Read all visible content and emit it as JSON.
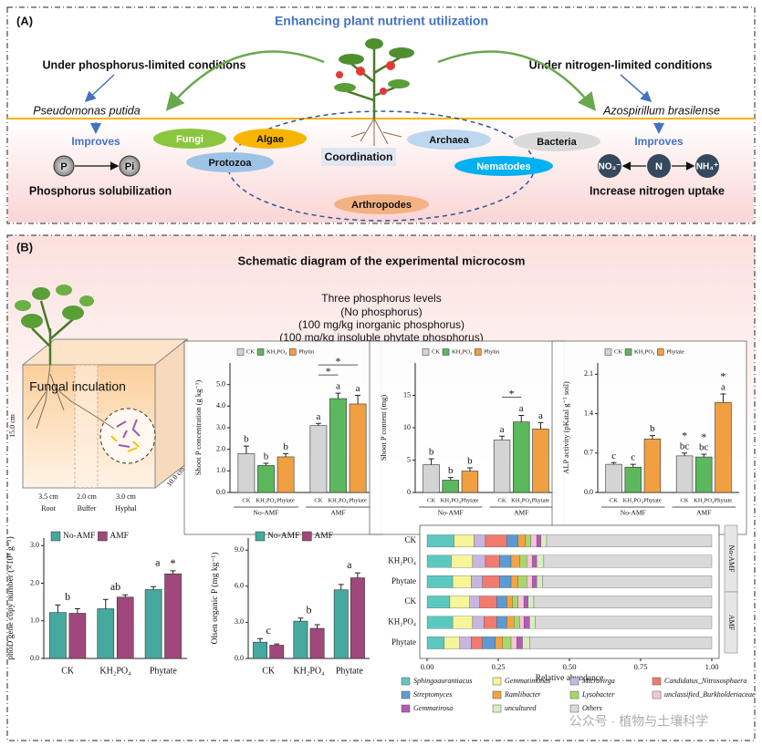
{
  "panel_a": {
    "label": "(A)",
    "title": "Enhancing plant nutrient utilization",
    "left": {
      "condition": "Under phosphorus-limited conditions",
      "organism": "Pseudomonas putida",
      "improves": "Improves",
      "from": "P",
      "to": "Pi",
      "outcome": "Phosphorus solubilization"
    },
    "right": {
      "condition": "Under nitrogen-limited conditions",
      "organism": "Azospirillum brasilense",
      "improves": "Improves",
      "nodes": [
        "NO₃⁻",
        "N",
        "NH₄⁺"
      ],
      "outcome": "Increase nitrogen uptake"
    },
    "center": "Coordination",
    "groups": [
      "Fungi",
      "Algae",
      "Protozoa",
      "Archaea",
      "Bacteria",
      "Nematodes",
      "Arthropodes"
    ]
  },
  "panel_b": {
    "label": "(B)",
    "title": "Schematic diagram of the experimental microcosm",
    "levels": [
      "Three phosphorus levels",
      "(No phosphorus)",
      "(100 mg/kg inorganic phosphorus)",
      "(100 mg/kg insoluble phytate phosphorus)"
    ],
    "microcosm": {
      "inoculation": "Fungal inculation",
      "height": "15.0 cm",
      "depth": "10.0 cm",
      "widths": [
        "3.5 cm",
        "2.0 cm",
        "3.0 cm"
      ],
      "compartments": [
        "Root",
        "Buffer",
        "Hyphal"
      ]
    }
  },
  "watermark": "公众号 · 植物与土壤科学",
  "chart_data": [
    {
      "type": "bar",
      "ylabel": "Shoot P concentration (g kg⁻¹)",
      "categories": [
        "No-AMF",
        "AMF"
      ],
      "bar_labels": [
        "CK",
        "KH₂PO₄",
        "Phytate"
      ],
      "series": [
        {
          "name": "CK",
          "color": "#d4d4d4",
          "values": [
            1.8,
            3.1
          ],
          "errors": [
            0.35,
            0.1
          ],
          "letters": [
            "b",
            "a"
          ]
        },
        {
          "name": "KH₂PO₄",
          "color": "#5cb85c",
          "values": [
            1.25,
            4.35
          ],
          "errors": [
            0.1,
            0.25
          ],
          "letters": [
            "b",
            "a"
          ]
        },
        {
          "name": "Phytin",
          "color": "#f0a040",
          "values": [
            1.65,
            4.1
          ],
          "errors": [
            0.15,
            0.4
          ],
          "letters": [
            "b",
            "a"
          ]
        }
      ],
      "brackets": [
        "*",
        "*"
      ],
      "ylim": [
        0,
        6
      ],
      "yticks": [
        {
          "value": 0,
          "label": "0.0"
        },
        {
          "value": 1,
          "label": "1.0"
        },
        {
          "value": 2,
          "label": "2.0"
        },
        {
          "value": 3,
          "label": "3.0"
        },
        {
          "value": 4,
          "label": "4.0"
        },
        {
          "value": 5,
          "label": "5.0"
        }
      ]
    },
    {
      "type": "bar",
      "ylabel": "Shoot P content (mg)",
      "categories": [
        "No-AMF",
        "AMF"
      ],
      "bar_labels": [
        "CK",
        "KH₂PO₄",
        "Phytate"
      ],
      "series": [
        {
          "name": "CK",
          "color": "#d4d4d4",
          "values": [
            4.3,
            8.1
          ],
          "errors": [
            0.9,
            0.6
          ],
          "letters": [
            "b",
            "a"
          ]
        },
        {
          "name": "KH₂PO₄",
          "color": "#5cb85c",
          "values": [
            1.9,
            10.9
          ],
          "errors": [
            0.4,
            1.0
          ],
          "letters": [
            "b",
            "a"
          ]
        },
        {
          "name": "Phytin",
          "color": "#f0a040",
          "values": [
            3.3,
            9.8
          ],
          "errors": [
            0.5,
            1.0
          ],
          "letters": [
            "b",
            "a"
          ]
        }
      ],
      "brackets": [
        "*"
      ],
      "ylim": [
        0,
        20
      ],
      "yticks": [
        0,
        5,
        10,
        15
      ]
    },
    {
      "type": "bar",
      "ylabel": "ALP activity (pKatal g⁻¹ soil)",
      "categories": [
        "No-AMF",
        "AMF"
      ],
      "bar_labels": [
        "CK",
        "KH₂PO₄",
        "Phytate"
      ],
      "series": [
        {
          "name": "CK",
          "color": "#d4d4d4",
          "values": [
            0.5,
            0.65
          ],
          "errors": [
            0.03,
            0.05
          ],
          "letters": [
            "c",
            "bc"
          ],
          "stars": [
            null,
            "*"
          ]
        },
        {
          "name": "KH₂PO₄",
          "color": "#5cb85c",
          "values": [
            0.45,
            0.63
          ],
          "errors": [
            0.05,
            0.05
          ],
          "letters": [
            "c",
            "bc"
          ],
          "stars": [
            null,
            "*"
          ]
        },
        {
          "name": "Phytate",
          "color": "#f0a040",
          "values": [
            0.95,
            1.6
          ],
          "errors": [
            0.06,
            0.15
          ],
          "letters": [
            "b",
            "a"
          ],
          "stars": [
            null,
            "*"
          ]
        }
      ],
      "ylim": [
        0,
        2.3
      ],
      "yticks": [
        {
          "value": 0,
          "label": "0.0"
        },
        {
          "value": 0.7,
          "label": "0.7"
        },
        {
          "value": 1.4,
          "label": "1.4"
        },
        {
          "value": 2.1,
          "label": "2.1"
        }
      ]
    },
    {
      "type": "bar",
      "ylabel": "phoD gene copy number (×10⁸ g⁻¹)",
      "categories": [
        "CK",
        "KH₂PO₄",
        "Phytate"
      ],
      "series": [
        {
          "name": "No-AMF",
          "color": "#45a9a0",
          "values": [
            1.22,
            1.32,
            1.83
          ],
          "errors": [
            0.2,
            0.25,
            0.08
          ]
        },
        {
          "name": "AMF",
          "color": "#a0487c",
          "values": [
            1.2,
            1.63,
            2.25
          ],
          "errors": [
            0.12,
            0.06,
            0.08
          ]
        }
      ],
      "letters": [
        "b",
        "ab",
        "a"
      ],
      "stars": [
        null,
        null,
        "*"
      ],
      "ylim": [
        0,
        3.2
      ],
      "yticks": [
        {
          "value": 0,
          "label": "0.0"
        },
        {
          "value": 1,
          "label": "1.0"
        },
        {
          "value": 2,
          "label": "2.0"
        },
        {
          "value": 3,
          "label": "3.0"
        }
      ]
    },
    {
      "type": "bar",
      "ylabel": "Olsen organic P (mg kg⁻¹)",
      "categories": [
        "CK",
        "KH₂PO₄",
        "Phytate"
      ],
      "series": [
        {
          "name": "No-AMF",
          "color": "#45a9a0",
          "values": [
            1.35,
            3.1,
            5.7
          ],
          "errors": [
            0.3,
            0.25,
            0.45
          ]
        },
        {
          "name": "AMF",
          "color": "#a0487c",
          "values": [
            1.1,
            2.5,
            6.7
          ],
          "errors": [
            0.1,
            0.3,
            0.4
          ]
        }
      ],
      "letters": [
        "c",
        "b",
        "a"
      ],
      "ylim": [
        0,
        10
      ],
      "yticks": [
        {
          "value": 0,
          "label": "0.0"
        },
        {
          "value": 3,
          "label": "3.0"
        },
        {
          "value": 6,
          "label": "6.0"
        },
        {
          "value": 9,
          "label": "9.0"
        }
      ]
    },
    {
      "type": "stacked_barh",
      "xlabel": "Relative abundance",
      "categories": [
        "CK",
        "KH₂PO₄",
        "Phytate",
        "CK",
        "KH₂PO₄",
        "Phytate"
      ],
      "groups": [
        "No-AMF",
        "AMF"
      ],
      "series": [
        {
          "name": "Sphingoaurantiacus",
          "color": "#5cc9c0",
          "values": [
            0.095,
            0.085,
            0.09,
            0.08,
            0.09,
            0.06
          ]
        },
        {
          "name": "Gemmatimonas",
          "color": "#f7f59a",
          "values": [
            0.07,
            0.075,
            0.065,
            0.07,
            0.07,
            0.055
          ]
        },
        {
          "name": "Microvirga",
          "color": "#c7b6df",
          "values": [
            0.04,
            0.045,
            0.04,
            0.035,
            0.04,
            0.04
          ]
        },
        {
          "name": "Candidatus_Nitrososphaera",
          "color": "#f07b6e",
          "values": [
            0.075,
            0.05,
            0.06,
            0.06,
            0.045,
            0.04
          ]
        },
        {
          "name": "Streptomyces",
          "color": "#5b9bd5",
          "values": [
            0.04,
            0.04,
            0.04,
            0.035,
            0.035,
            0.045
          ]
        },
        {
          "name": "Ramlibacter",
          "color": "#f4a340",
          "values": [
            0.025,
            0.03,
            0.025,
            0.02,
            0.025,
            0.025
          ]
        },
        {
          "name": "Lysobacter",
          "color": "#a8d86a",
          "values": [
            0.02,
            0.025,
            0.03,
            0.02,
            0.02,
            0.03
          ]
        },
        {
          "name": "unclassified_Burkholderiaceae",
          "color": "#f5c6d9",
          "values": [
            0.02,
            0.02,
            0.02,
            0.02,
            0.015,
            0.02
          ]
        },
        {
          "name": "Gemmatirosa",
          "color": "#b55ab5",
          "values": [
            0.015,
            0.015,
            0.015,
            0.015,
            0.02,
            0.02
          ]
        },
        {
          "name": "uncultured",
          "color": "#d6efc0",
          "values": [
            0.02,
            0.025,
            0.02,
            0.02,
            0.02,
            0.025
          ]
        },
        {
          "name": "Others",
          "color": "#d9d9d9",
          "values": [
            0.58,
            0.59,
            0.595,
            0.625,
            0.62,
            0.64
          ]
        }
      ],
      "xlim": [
        0,
        1
      ],
      "xticks": [
        {
          "value": 0,
          "label": "0.00"
        },
        {
          "value": 0.25,
          "label": "0.25"
        },
        {
          "value": 0.5,
          "label": "0.50"
        },
        {
          "value": 0.75,
          "label": "0.75"
        },
        {
          "value": 1,
          "label": "1.00"
        }
      ]
    }
  ]
}
